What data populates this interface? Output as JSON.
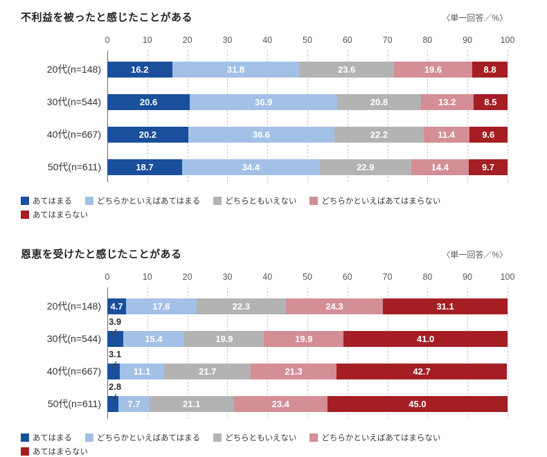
{
  "page": {
    "background": "#ffffff"
  },
  "chart_data": [
    {
      "type": "bar",
      "orientation": "horizontal",
      "stacked": true,
      "title": "不利益を被ったと感じたことがある",
      "note": "〈単一回答／%〉",
      "xlabel": "",
      "ylabel": "",
      "xlim": [
        0,
        100
      ],
      "xticks": [
        0,
        10,
        20,
        30,
        40,
        50,
        60,
        70,
        80,
        90,
        100
      ],
      "grid": true,
      "legend_position": "bottom",
      "grid_color": "#c7c7c7",
      "axis_color": "#6b6b6b",
      "categories": [
        "20代(n=148)",
        "30代(n=544)",
        "40代(n=667)",
        "50代(n=611)"
      ],
      "series": [
        {
          "name": "あてはまる",
          "color": "#1a4f9c",
          "values": [
            16.2,
            20.6,
            20.2,
            18.7
          ]
        },
        {
          "name": "どちらかといえばあてはまる",
          "color": "#a3c0e6",
          "values": [
            31.8,
            36.9,
            36.6,
            34.4
          ]
        },
        {
          "name": "どちらともいえない",
          "color": "#b3b3b3",
          "values": [
            23.6,
            20.8,
            22.2,
            22.9
          ]
        },
        {
          "name": "どちらかといえばあてはまらない",
          "color": "#d48e96",
          "values": [
            19.6,
            13.2,
            11.4,
            14.4
          ]
        },
        {
          "name": "あてはまらない",
          "color": "#a41e24",
          "values": [
            8.8,
            8.5,
            9.6,
            9.7
          ]
        }
      ]
    },
    {
      "type": "bar",
      "orientation": "horizontal",
      "stacked": true,
      "title": "恩恵を受けたと感じたことがある",
      "note": "〈単一回答／%〉",
      "xlabel": "",
      "ylabel": "",
      "xlim": [
        0,
        100
      ],
      "xticks": [
        0,
        10,
        20,
        30,
        40,
        50,
        60,
        70,
        80,
        90,
        100
      ],
      "grid": true,
      "legend_position": "bottom",
      "grid_color": "#c7c7c7",
      "axis_color": "#6b6b6b",
      "categories": [
        "20代(n=148)",
        "30代(n=544)",
        "40代(n=667)",
        "50代(n=611)"
      ],
      "series": [
        {
          "name": "あてはまる",
          "color": "#1a4f9c",
          "values": [
            4.7,
            3.9,
            3.1,
            2.8
          ],
          "label_outside": [
            false,
            true,
            true,
            true
          ]
        },
        {
          "name": "どちらかといえばあてはまる",
          "color": "#a3c0e6",
          "values": [
            17.6,
            15.4,
            11.1,
            7.7
          ]
        },
        {
          "name": "どちらともいえない",
          "color": "#b3b3b3",
          "values": [
            22.3,
            19.9,
            21.7,
            21.1
          ]
        },
        {
          "name": "どちらかといえばあてはまらない",
          "color": "#d48e96",
          "values": [
            24.3,
            19.9,
            21.3,
            23.4
          ]
        },
        {
          "name": "あてはまらない",
          "color": "#a41e24",
          "values": [
            31.1,
            41.0,
            42.7,
            45.0
          ]
        }
      ]
    }
  ]
}
